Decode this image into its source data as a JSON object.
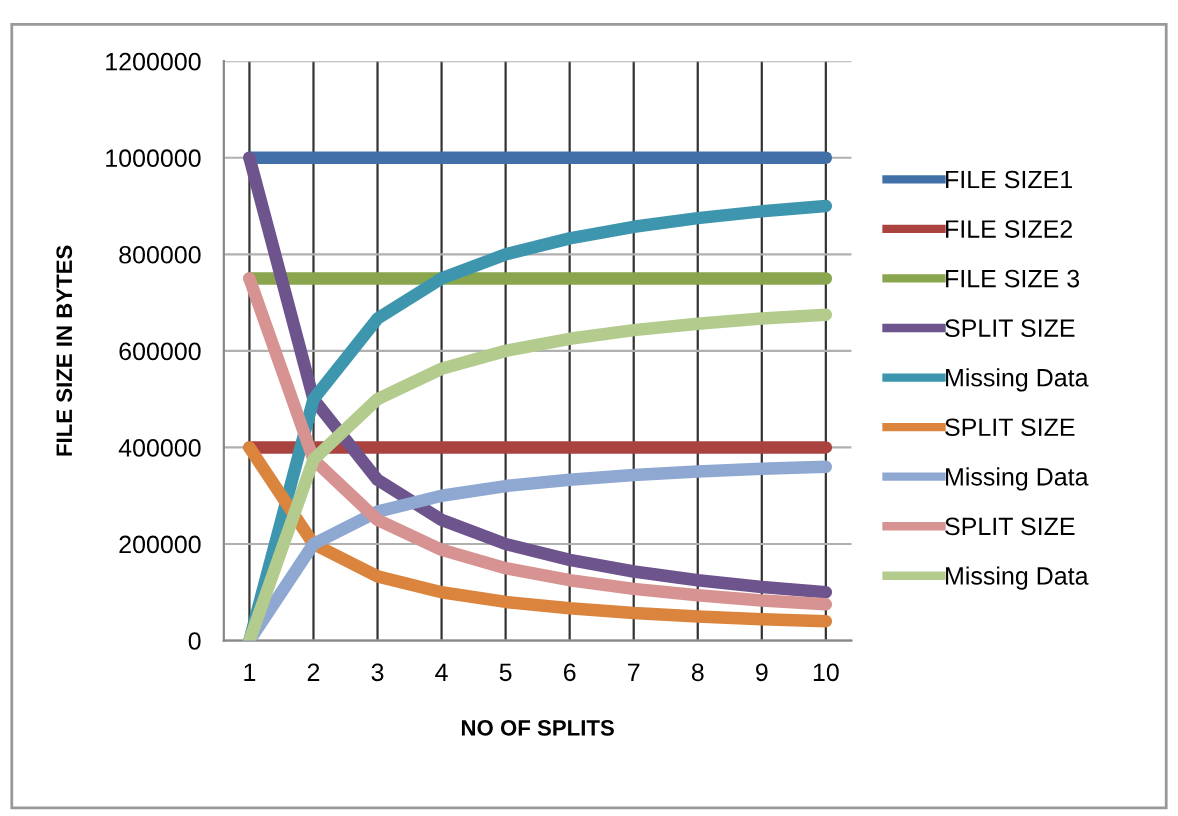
{
  "chart_data": {
    "type": "line",
    "xlabel": "NO OF SPLITS",
    "ylabel": "FILE SIZE IN BYTES",
    "categories": [
      "1",
      "2",
      "3",
      "4",
      "5",
      "6",
      "7",
      "8",
      "9",
      "10"
    ],
    "series": [
      {
        "name": "FILE SIZE1",
        "color": "#4170a8",
        "values": [
          1000000,
          1000000,
          1000000,
          1000000,
          1000000,
          1000000,
          1000000,
          1000000,
          1000000,
          1000000
        ]
      },
      {
        "name": "FILE SIZE2",
        "color": "#aa4340",
        "values": [
          400000,
          400000,
          400000,
          400000,
          400000,
          400000,
          400000,
          400000,
          400000,
          400000
        ]
      },
      {
        "name": "FILE SIZE 3",
        "color": "#89a54e",
        "values": [
          750000,
          750000,
          750000,
          750000,
          750000,
          750000,
          750000,
          750000,
          750000,
          750000
        ]
      },
      {
        "name": "SPLIT SIZE",
        "color": "#6e548d",
        "values": [
          1000000,
          500000,
          333000,
          250000,
          200000,
          167000,
          143000,
          125000,
          111000,
          100000
        ]
      },
      {
        "name": "Missing Data",
        "color": "#3d96ae",
        "values": [
          0,
          500000,
          667000,
          750000,
          800000,
          833000,
          857000,
          875000,
          889000,
          900000
        ]
      },
      {
        "name": "SPLIT SIZE",
        "color": "#db843d",
        "values": [
          400000,
          200000,
          133000,
          100000,
          80000,
          67000,
          57000,
          50000,
          44000,
          40000
        ]
      },
      {
        "name": "Missing Data",
        "color": "#8fa8d2",
        "values": [
          0,
          200000,
          267000,
          300000,
          320000,
          333000,
          343000,
          350000,
          356000,
          360000
        ]
      },
      {
        "name": "SPLIT SIZE",
        "color": "#d69391",
        "values": [
          750000,
          375000,
          250000,
          188000,
          150000,
          125000,
          107000,
          94000,
          83000,
          75000
        ]
      },
      {
        "name": "Missing Data",
        "color": "#b3cb8c",
        "values": [
          0,
          375000,
          500000,
          563000,
          600000,
          625000,
          643000,
          656000,
          667000,
          675000
        ]
      }
    ],
    "ylim": [
      0,
      1200000
    ],
    "yticks": [
      0,
      200000,
      400000,
      600000,
      800000,
      1000000,
      1200000
    ],
    "grid": true,
    "legend": "right",
    "line_style": "solid"
  }
}
